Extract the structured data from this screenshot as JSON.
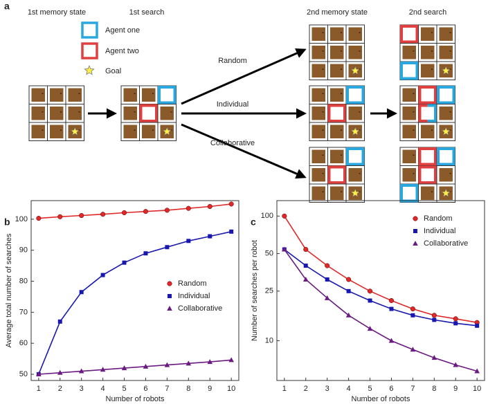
{
  "panel_labels": [
    "a",
    "b",
    "c"
  ],
  "diagram": {
    "stage_labels": [
      "1st memory state",
      "1st search",
      "2nd memory state",
      "2nd search"
    ],
    "legend": [
      "Agent one",
      "Agent two",
      "Goal"
    ],
    "strategies": [
      "Random",
      "Individual",
      "Collaborative"
    ]
  },
  "chart_data": [
    {
      "type": "line",
      "x_label": "Number of robots",
      "y_label": "Average total number of searches",
      "x": [
        1,
        2,
        3,
        4,
        5,
        6,
        7,
        8,
        9,
        10
      ],
      "xlim": [
        0.65,
        10.35
      ],
      "xticks": [
        1,
        2,
        3,
        4,
        5,
        6,
        7,
        8,
        9,
        10
      ],
      "ylim": [
        48,
        106
      ],
      "yticks": [
        50,
        60,
        70,
        80,
        90,
        100
      ],
      "legend": "center right",
      "series": [
        {
          "name": "Random",
          "color": "#e02828",
          "marker": "circle",
          "values": [
            100.3,
            100.8,
            101.2,
            101.6,
            102.1,
            102.5,
            102.9,
            103.5,
            104.1,
            104.9
          ]
        },
        {
          "name": "Individual",
          "color": "#1818b0",
          "marker": "square",
          "values": [
            50,
            67,
            76.5,
            82,
            86,
            89,
            91,
            93,
            94.5,
            96
          ]
        },
        {
          "name": "Collaborative",
          "color": "#6a1a80",
          "marker": "triangle",
          "values": [
            50,
            50.5,
            51,
            51.5,
            52,
            52.5,
            53,
            53.5,
            54,
            54.6
          ]
        }
      ]
    },
    {
      "type": "line",
      "x_label": "Number of robots",
      "y_label": "Number of searches per robot",
      "x": [
        1,
        2,
        3,
        4,
        5,
        6,
        7,
        8,
        9,
        10
      ],
      "xlim": [
        0.65,
        10.35
      ],
      "xticks": [
        1,
        2,
        3,
        4,
        5,
        6,
        7,
        8,
        9,
        10
      ],
      "log_y": true,
      "ylim": [
        4.8,
        133
      ],
      "yticks": [
        10,
        25,
        50,
        100
      ],
      "legend": "upper right",
      "series": [
        {
          "name": "Random",
          "color": "#e02828",
          "marker": "circle",
          "values": [
            100,
            54,
            40,
            31,
            25,
            21,
            18,
            16,
            15,
            14
          ]
        },
        {
          "name": "Individual",
          "color": "#1818b0",
          "marker": "square",
          "values": [
            54,
            40,
            31,
            25,
            21,
            18,
            16,
            14.7,
            13.8,
            13.2
          ]
        },
        {
          "name": "Collaborative",
          "color": "#6a1a80",
          "marker": "triangle",
          "values": [
            54,
            31,
            22,
            16,
            12.5,
            10,
            8.5,
            7.3,
            6.4,
            5.7
          ]
        }
      ]
    }
  ]
}
